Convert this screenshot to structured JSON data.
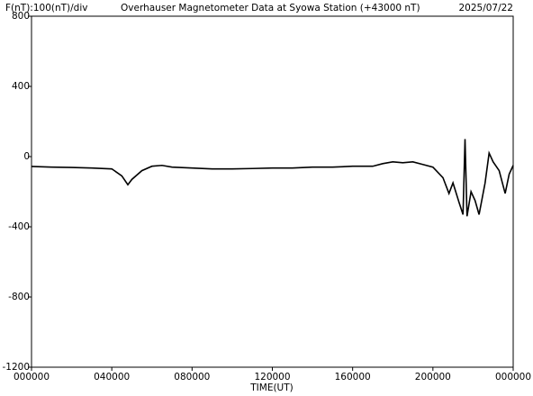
{
  "chart_data": {
    "type": "line",
    "scale_note": "F(nT):100(nT)/div",
    "title": "Overhauser Magnetometer Data at Syowa Station (+43000 nT)",
    "date": "2025/07/22",
    "x_label": "TIME(UT)",
    "x": [
      0,
      1,
      2,
      3,
      4,
      4.5,
      4.8,
      5.0,
      5.5,
      6.0,
      6.5,
      7,
      8,
      9,
      10,
      11,
      12,
      13,
      14,
      15,
      16,
      17,
      17.5,
      18,
      18.5,
      19,
      19.5,
      20,
      20.5,
      20.8,
      21.0,
      21.3,
      21.5,
      21.6,
      21.7,
      21.9,
      22.1,
      22.3,
      22.6,
      22.8,
      23.0,
      23.3,
      23.6,
      23.8,
      24
    ],
    "series": [
      {
        "color": "#000000",
        "values": [
          -56,
          -60,
          -62,
          -65,
          -70,
          -110,
          -160,
          -130,
          -80,
          -55,
          -50,
          -60,
          -65,
          -70,
          -70,
          -68,
          -65,
          -65,
          -60,
          -60,
          -55,
          -55,
          -40,
          -30,
          -35,
          -30,
          -45,
          -60,
          -120,
          -210,
          -150,
          -260,
          -330,
          100,
          -340,
          -200,
          -250,
          -330,
          -150,
          20,
          -30,
          -80,
          -210,
          -100,
          -50
        ]
      }
    ],
    "xlim": [
      0,
      24
    ],
    "xticks": [
      {
        "value": 0,
        "label": "000000"
      },
      {
        "value": 4,
        "label": "040000"
      },
      {
        "value": 8,
        "label": "080000"
      },
      {
        "value": 12,
        "label": "120000"
      },
      {
        "value": 16,
        "label": "160000"
      },
      {
        "value": 20,
        "label": "200000"
      },
      {
        "value": 24,
        "label": "000000"
      }
    ],
    "ylim": [
      -1200,
      800
    ],
    "yticks": [
      -1200,
      -800,
      -400,
      0,
      400,
      800
    ]
  }
}
